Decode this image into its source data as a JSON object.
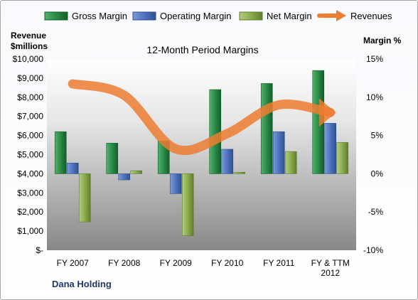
{
  "chart_data": {
    "type": "bar",
    "title": "12-Month Period Margins",
    "company": "Dana Holding",
    "categories": [
      "FY 2007",
      "FY 2008",
      "FY 2009",
      "FY 2010",
      "FY 2011",
      "FY & TTM 2012"
    ],
    "left_axis": {
      "label_line1": "Revenue",
      "label_line2": "$millions",
      "range": [
        0,
        10000
      ],
      "ticks": [
        "$-",
        "$1,000",
        "$2,000",
        "$3,000",
        "$4,000",
        "$5,000",
        "$6,000",
        "$7,000",
        "$8,000",
        "$9,000",
        "$10,000"
      ]
    },
    "right_axis": {
      "label": "Margin %",
      "range": [
        -10,
        15
      ],
      "ticks": [
        "-10%",
        "-5%",
        "0%",
        "5%",
        "10%",
        "15%"
      ]
    },
    "series": [
      {
        "name": "Gross Margin",
        "axis": "right",
        "color": "#1e7b3c",
        "values": [
          5.5,
          4.0,
          4.3,
          11.0,
          11.8,
          13.5
        ]
      },
      {
        "name": "Operating Margin",
        "axis": "right",
        "color": "#4472c4",
        "values": [
          1.4,
          -0.8,
          -2.6,
          3.2,
          5.5,
          6.6
        ]
      },
      {
        "name": "Net Margin",
        "axis": "right",
        "color": "#8aad4e",
        "values": [
          -6.3,
          0.4,
          -8.1,
          0.2,
          2.9,
          4.1
        ]
      },
      {
        "name": "Revenues",
        "axis": "left",
        "color": "#ed7d31",
        "type": "line",
        "values": [
          8700,
          8100,
          5300,
          6100,
          7600,
          7200
        ]
      }
    ],
    "grid": false,
    "legend_position": "top"
  }
}
